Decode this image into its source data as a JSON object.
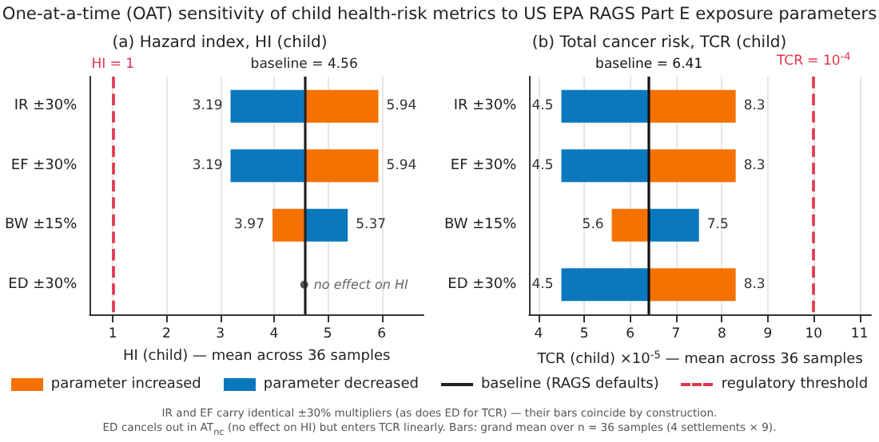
{
  "chart_data": [
    {
      "type": "bar",
      "orientation": "horizontal",
      "title": "(a) Hazard index, HI (child)",
      "xlabel": "HI (child) — mean across 36 samples",
      "categories": [
        "IR ±30%",
        "EF ±30%",
        "BW ±15%",
        "ED ±30%"
      ],
      "series": [
        {
          "name": "parameter increased",
          "color": "#f57100",
          "base": [
            4.56,
            4.56,
            4.56,
            null
          ],
          "values": [
            1.38,
            1.38,
            -0.59,
            null
          ],
          "value_labels": [
            "5.94",
            "5.94",
            "3.97",
            null
          ]
        },
        {
          "name": "parameter decreased",
          "color": "#0b78bd",
          "base": [
            4.56,
            4.56,
            4.56,
            null
          ],
          "values": [
            -1.37,
            -1.37,
            0.81,
            null
          ],
          "value_labels": [
            "3.19",
            "3.19",
            "5.37",
            null
          ]
        }
      ],
      "xlim": [
        0.57,
        6.78
      ],
      "xticks": [
        1,
        2,
        3,
        4,
        5,
        6
      ],
      "grid": "x",
      "legend": "bottom",
      "ref_lines": [
        {
          "axis": "x",
          "value": 1,
          "label": "HI = 1",
          "color": "#e0354c",
          "line_style": "dashed"
        },
        {
          "axis": "x",
          "value": 4.56,
          "label": "baseline = 4.56",
          "color": "#222222",
          "line_style": "solid"
        }
      ],
      "annotations": [
        "One-at-a-time (OAT) sensitivity of child health-risk metrics to US EPA RAGS Part E exposure parameters",
        "baseline (RAGS defaults)",
        "regulatory threshold",
        "IR and EF carry identical ±30% multipliers (as does ED for TCR) — their bars coincide by construction.",
        "ED cancels out in AT$_{nc}$ (no effect on HI) but enters TCR linearly. Bars: grand mean over n = 36 samples (4 settlements × 9).",
        {
          "text": "no effect on HI",
          "x": 4.56,
          "y": "ED ±30%"
        }
      ]
    },
    {
      "type": "bar",
      "orientation": "horizontal",
      "title": "(b) Total cancer risk, TCR (child)",
      "xlabel": "TCR (child) ×10$^{-5}$ — mean across 36 samples",
      "categories": [
        "IR ±30%",
        "EF ±30%",
        "BW ±15%",
        "ED ±30%"
      ],
      "series": [
        {
          "color": "#f57100",
          "base": [
            6.41,
            6.41,
            6.41,
            6.41
          ],
          "values": [
            1.89,
            1.89,
            -0.81,
            1.89
          ],
          "value_labels": [
            "8.3",
            "8.3",
            "5.6",
            "8.3"
          ]
        },
        {
          "color": "#0b78bd",
          "base": [
            6.41,
            6.41,
            6.41,
            6.41
          ],
          "values": [
            -1.91,
            -1.91,
            1.09,
            -1.91
          ],
          "value_labels": [
            "4.5",
            "4.5",
            "7.5",
            "4.5"
          ]
        }
      ],
      "xlim": [
        3.8,
        11.25
      ],
      "xticks": [
        4,
        5,
        6,
        7,
        8,
        9,
        10,
        11
      ],
      "grid": "x",
      "ref_lines": [
        {
          "axis": "x",
          "value": 6.41,
          "label": "baseline = 6.41",
          "color": "#111111",
          "line_style": "solid"
        },
        {
          "axis": "x",
          "value": 10,
          "label": "TCR = 10$^{-4}$",
          "color": "#e0354c",
          "line_style": "dashed"
        }
      ]
    }
  ]
}
